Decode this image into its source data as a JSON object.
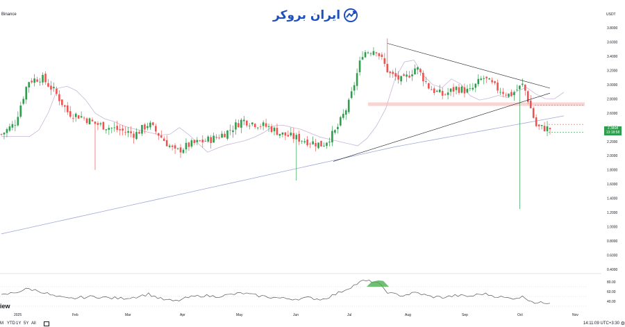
{
  "symbol": {
    "exchange_label": "Binance",
    "currency": "USDT"
  },
  "brand": {
    "text": "ایران بروکر"
  },
  "watermark": {
    "text": "iew"
  },
  "last_price": {
    "value": "2.3808",
    "countdown": "13:18:58"
  },
  "bottom_bar": {
    "ranges": [
      "M",
      "YTD",
      "1Y",
      "5Y",
      "All"
    ],
    "time": "14:11:09 UTC+3:30",
    "settings_icon": "gear-icon",
    "calendar_icon": "calendar-icon"
  },
  "colors": {
    "up": "#26a69a",
    "up_body": "#2e9d4d",
    "down": "#ef5350",
    "ma_fast": "#c8b4d9",
    "ma_slow": "#9fa8da",
    "trendline": "#131722",
    "resistance_zone": "#f5b8b8",
    "rsi_line": "#555555",
    "rsi_overbought_fill": "#4caf50"
  },
  "chart_data": [
    {
      "type": "candlestick",
      "title": "",
      "x_ticks": [
        "2025",
        "Feb",
        "Mar",
        "Apr",
        "May",
        "Jun",
        "Jul",
        "Aug",
        "Sep",
        "Oct",
        "Nov"
      ],
      "y_ticks": [
        "3.8000",
        "3.6000",
        "3.4000",
        "3.2000",
        "3.0000",
        "2.8000",
        "2.6000",
        "2.4000",
        "2.2000",
        "2.0000",
        "1.8000",
        "1.6000",
        "1.4000",
        "1.2000",
        "1.0000",
        "0.8000",
        "0.6000",
        "0.4000"
      ],
      "ylim": [
        0.4,
        3.8
      ],
      "close_series": {
        "x": [
          "2025-01-01",
          "2025-01-08",
          "2025-01-15",
          "2025-01-22",
          "2025-01-29",
          "2025-02-05",
          "2025-02-12",
          "2025-02-19",
          "2025-02-26",
          "2025-03-05",
          "2025-03-12",
          "2025-03-19",
          "2025-03-26",
          "2025-04-02",
          "2025-04-09",
          "2025-04-16",
          "2025-04-23",
          "2025-04-30",
          "2025-05-07",
          "2025-05-14",
          "2025-05-21",
          "2025-05-28",
          "2025-06-04",
          "2025-06-11",
          "2025-06-18",
          "2025-06-25",
          "2025-07-02",
          "2025-07-09",
          "2025-07-16",
          "2025-07-23",
          "2025-07-30",
          "2025-08-06",
          "2025-08-13",
          "2025-08-20",
          "2025-08-27",
          "2025-09-03",
          "2025-09-10",
          "2025-09-17",
          "2025-09-24",
          "2025-10-01",
          "2025-10-08",
          "2025-10-15"
        ],
        "close": [
          2.3,
          2.45,
          3.05,
          3.1,
          2.9,
          2.6,
          2.55,
          2.45,
          2.4,
          2.35,
          2.3,
          2.45,
          2.25,
          2.05,
          2.15,
          2.2,
          2.25,
          2.35,
          2.5,
          2.45,
          2.4,
          2.3,
          2.25,
          2.2,
          2.15,
          2.35,
          2.75,
          3.45,
          3.5,
          3.15,
          3.05,
          3.25,
          2.95,
          2.85,
          2.95,
          2.9,
          3.1,
          2.95,
          2.85,
          3.0,
          2.4,
          2.38
        ]
      },
      "events": {
        "flash_crash_low": 1.25,
        "cycle_high": 3.65
      },
      "support_line": "2.33",
      "resistance_zone": [
        2.7,
        2.75
      ],
      "moving_averages": [
        "fast",
        "slow"
      ]
    },
    {
      "type": "line",
      "title": "",
      "y_ticks": [
        "80.00",
        "60.00",
        "40.00"
      ],
      "ylim": [
        20,
        90
      ],
      "overbought": 70,
      "oversold": 30,
      "values": [
        52,
        58,
        66,
        60,
        50,
        45,
        48,
        50,
        47,
        46,
        49,
        55,
        44,
        40,
        48,
        52,
        50,
        53,
        57,
        52,
        49,
        46,
        45,
        47,
        44,
        55,
        68,
        82,
        80,
        56,
        52,
        58,
        50,
        48,
        52,
        50,
        56,
        50,
        46,
        49,
        36,
        38
      ]
    }
  ]
}
